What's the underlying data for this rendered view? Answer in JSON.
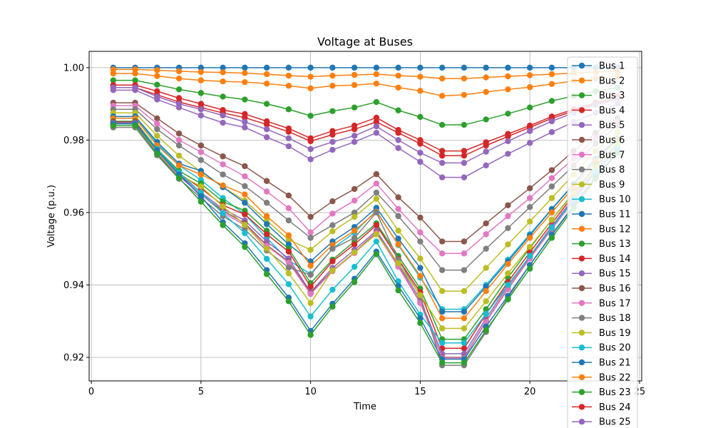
{
  "chart_data": {
    "type": "line",
    "title": "Voltage at Buses",
    "xlabel": "Time",
    "ylabel": "Voltage (p.u.)",
    "xlim": [
      -0.1,
      25.1
    ],
    "ylim": [
      0.9135,
      1.0045
    ],
    "xticks": [
      0,
      5,
      10,
      15,
      20,
      25
    ],
    "xtick_labels": [
      "0",
      "5",
      "10",
      "15",
      "20",
      "25"
    ],
    "yticks": [
      0.92,
      0.94,
      0.96,
      0.98,
      1.0
    ],
    "ytick_labels": [
      "0.92",
      "0.94",
      "0.96",
      "0.98",
      "1.00"
    ],
    "grid": true,
    "legend_position": "upper-right",
    "x": [
      1,
      2,
      3,
      4,
      5,
      6,
      7,
      8,
      9,
      10,
      11,
      12,
      13,
      14,
      15,
      16,
      17,
      18,
      19,
      20,
      21,
      22,
      23,
      24
    ],
    "series": [
      {
        "name": "Bus 1",
        "color": "#1f77b4",
        "values": [
          1.0,
          1.0,
          1.0,
          1.0,
          1.0,
          1.0,
          1.0,
          1.0,
          1.0,
          1.0,
          1.0,
          1.0,
          1.0,
          1.0,
          1.0,
          1.0,
          1.0,
          1.0,
          1.0,
          1.0,
          1.0,
          1.0,
          1.0,
          1.0
        ]
      },
      {
        "name": "Bus 2",
        "color": "#ff7f0e",
        "values": [
          0.9984,
          0.9984,
          0.9977,
          0.997,
          0.9965,
          0.9962,
          0.996,
          0.9956,
          0.995,
          0.9943,
          0.995,
          0.9952,
          0.9956,
          0.9945,
          0.9936,
          0.9922,
          0.9925,
          0.9933,
          0.994,
          0.9946,
          0.9955,
          0.9963,
          0.997,
          0.9976
        ]
      },
      {
        "name": "Bus 3",
        "color": "#2ca02c",
        "values": [
          0.9965,
          0.9965,
          0.9953,
          0.994,
          0.993,
          0.992,
          0.9912,
          0.99,
          0.9885,
          0.9867,
          0.988,
          0.989,
          0.9905,
          0.9882,
          0.9864,
          0.9842,
          0.9842,
          0.9857,
          0.9873,
          0.989,
          0.9908,
          0.9922,
          0.9935,
          0.9945
        ]
      },
      {
        "name": "Bus 4",
        "color": "#d62728",
        "values": [
          0.9952,
          0.9952,
          0.9935,
          0.9916,
          0.99,
          0.9883,
          0.9872,
          0.9852,
          0.9832,
          0.9805,
          0.9825,
          0.984,
          0.9862,
          0.9828,
          0.98,
          0.977,
          0.977,
          0.9794,
          0.9817,
          0.984,
          0.9865,
          0.9885,
          0.9903,
          0.992
        ]
      },
      {
        "name": "Bus 5",
        "color": "#9467bd",
        "values": [
          0.9938,
          0.9938,
          0.9912,
          0.989,
          0.9868,
          0.9848,
          0.9835,
          0.9808,
          0.9783,
          0.9747,
          0.9773,
          0.9795,
          0.982,
          0.9778,
          0.974,
          0.9697,
          0.9697,
          0.973,
          0.9762,
          0.9792,
          0.9822,
          0.985,
          0.9876,
          0.99
        ]
      },
      {
        "name": "Bus 6",
        "color": "#8c564b",
        "values": [
          0.9903,
          0.9903,
          0.986,
          0.9818,
          0.9785,
          0.9755,
          0.9728,
          0.9687,
          0.9647,
          0.9588,
          0.9631,
          0.9665,
          0.9706,
          0.9642,
          0.9586,
          0.952,
          0.952,
          0.957,
          0.962,
          0.9667,
          0.9717,
          0.977,
          0.982,
          0.986
        ]
      },
      {
        "name": "Bus 7",
        "color": "#e377c2",
        "values": [
          0.9895,
          0.9895,
          0.9845,
          0.98,
          0.9767,
          0.9733,
          0.97,
          0.9658,
          0.9612,
          0.9545,
          0.9597,
          0.9633,
          0.968,
          0.961,
          0.9545,
          0.9487,
          0.9487,
          0.954,
          0.959,
          0.964,
          0.9695,
          0.975,
          0.9805,
          0.985
        ]
      },
      {
        "name": "Bus 8",
        "color": "#7f7f7f",
        "values": [
          0.9885,
          0.9885,
          0.983,
          0.9785,
          0.9745,
          0.9705,
          0.9673,
          0.9627,
          0.9578,
          0.953,
          0.9565,
          0.96,
          0.9655,
          0.959,
          0.952,
          0.9441,
          0.9441,
          0.95,
          0.9557,
          0.9615,
          0.9672,
          0.973,
          0.979,
          0.984
        ]
      },
      {
        "name": "Bus 9",
        "color": "#bcbd22",
        "values": [
          0.9875,
          0.9875,
          0.9812,
          0.9757,
          0.9713,
          0.967,
          0.9633,
          0.9578,
          0.9525,
          0.9497,
          0.9548,
          0.9588,
          0.9638,
          0.955,
          0.9473,
          0.9383,
          0.9383,
          0.9447,
          0.9512,
          0.9575,
          0.964,
          0.9705,
          0.977,
          0.9822
        ]
      },
      {
        "name": "Bus 10",
        "color": "#17becf",
        "values": [
          0.9865,
          0.9865,
          0.979,
          0.973,
          0.969,
          0.964,
          0.9595,
          0.953,
          0.9468,
          0.943,
          0.95,
          0.9545,
          0.9605,
          0.951,
          0.942,
          0.9333,
          0.9333,
          0.94,
          0.947,
          0.954,
          0.961,
          0.968,
          0.975,
          0.9805
        ]
      },
      {
        "name": "Bus 11",
        "color": "#1f77b4",
        "values": [
          0.9865,
          0.9865,
          0.9795,
          0.9735,
          0.9715,
          0.967,
          0.9627,
          0.9568,
          0.9512,
          0.9465,
          0.952,
          0.956,
          0.9613,
          0.9528,
          0.9447,
          0.9326,
          0.9326,
          0.9395,
          0.9465,
          0.9537,
          0.9609,
          0.9678,
          0.9748,
          0.9804
        ]
      },
      {
        "name": "Bus 12",
        "color": "#ff7f0e",
        "values": [
          0.986,
          0.986,
          0.9785,
          0.973,
          0.9705,
          0.9675,
          0.965,
          0.959,
          0.9537,
          0.9453,
          0.951,
          0.955,
          0.9602,
          0.9512,
          0.9425,
          0.9308,
          0.9308,
          0.9383,
          0.9458,
          0.953,
          0.96,
          0.967,
          0.9742,
          0.98
        ]
      },
      {
        "name": "Bus 13",
        "color": "#2ca02c",
        "values": [
          0.9852,
          0.9852,
          0.9775,
          0.9715,
          0.968,
          0.963,
          0.9605,
          0.955,
          0.95,
          0.9405,
          0.947,
          0.952,
          0.957,
          0.948,
          0.939,
          0.925,
          0.925,
          0.9333,
          0.942,
          0.9502,
          0.958,
          0.9655,
          0.973,
          0.979
        ]
      },
      {
        "name": "Bus 14",
        "color": "#d62728",
        "values": [
          0.985,
          0.985,
          0.977,
          0.9708,
          0.9667,
          0.962,
          0.9595,
          0.954,
          0.9492,
          0.9395,
          0.9465,
          0.9512,
          0.9565,
          0.9472,
          0.938,
          0.9225,
          0.9225,
          0.932,
          0.9408,
          0.949,
          0.957,
          0.9648,
          0.9725,
          0.9785
        ]
      },
      {
        "name": "Bus 15",
        "color": "#9467bd",
        "values": [
          0.9848,
          0.9848,
          0.9768,
          0.9705,
          0.9655,
          0.961,
          0.9578,
          0.952,
          0.9473,
          0.938,
          0.9447,
          0.9497,
          0.955,
          0.9458,
          0.936,
          0.921,
          0.921,
          0.9308,
          0.9397,
          0.948,
          0.9562,
          0.964,
          0.9718,
          0.978
        ]
      },
      {
        "name": "Bus 16",
        "color": "#8c564b",
        "values": [
          0.9845,
          0.9845,
          0.9765,
          0.97,
          0.965,
          0.9605,
          0.957,
          0.951,
          0.9465,
          0.9378,
          0.944,
          0.949,
          0.9545,
          0.9452,
          0.9352,
          0.92,
          0.92,
          0.93,
          0.939,
          0.9475,
          0.9556,
          0.9635,
          0.9713,
          0.9776
        ]
      },
      {
        "name": "Bus 17",
        "color": "#e377c2",
        "values": [
          0.9845,
          0.9845,
          0.9765,
          0.97,
          0.965,
          0.96,
          0.9565,
          0.9508,
          0.9462,
          0.9375,
          0.9438,
          0.9488,
          0.9543,
          0.945,
          0.935,
          0.9198,
          0.9198,
          0.9298,
          0.9388,
          0.9473,
          0.9554,
          0.9633,
          0.9711,
          0.9775
        ]
      },
      {
        "name": "Bus 18",
        "color": "#7f7f7f",
        "values": [
          0.9835,
          0.9835,
          0.9758,
          0.9693,
          0.964,
          0.959,
          0.9553,
          0.9495,
          0.9448,
          0.9428,
          0.95,
          0.953,
          0.96,
          0.947,
          0.937,
          0.9178,
          0.9178,
          0.927,
          0.9365,
          0.9455,
          0.954,
          0.962,
          0.97,
          0.9768
        ]
      },
      {
        "name": "Bus 19",
        "color": "#bcbd22",
        "values": [
          0.9845,
          0.9845,
          0.977,
          0.9705,
          0.9672,
          0.9617,
          0.9566,
          0.95,
          0.9432,
          0.935,
          0.944,
          0.949,
          0.954,
          0.946,
          0.9372,
          0.928,
          0.928,
          0.9355,
          0.9432,
          0.9505,
          0.958,
          0.9652,
          0.9725,
          0.9785
        ]
      },
      {
        "name": "Bus 20",
        "color": "#17becf",
        "values": [
          0.9845,
          0.9845,
          0.9775,
          0.971,
          0.9655,
          0.9598,
          0.9543,
          0.9472,
          0.9402,
          0.9313,
          0.9387,
          0.945,
          0.952,
          0.941,
          0.9318,
          0.924,
          0.924,
          0.932,
          0.94,
          0.948,
          0.9558,
          0.9635,
          0.9712,
          0.9778
        ]
      },
      {
        "name": "Bus 21",
        "color": "#1f77b4",
        "values": [
          0.9845,
          0.9845,
          0.9772,
          0.9705,
          0.9645,
          0.9573,
          0.9515,
          0.9441,
          0.9365,
          0.9273,
          0.9348,
          0.9417,
          0.9492,
          0.9397,
          0.9308,
          0.9195,
          0.9195,
          0.9285,
          0.937,
          0.9455,
          0.9538,
          0.9618,
          0.9698,
          0.9768
        ]
      },
      {
        "name": "Bus 22",
        "color": "#ff7f0e",
        "values": [
          0.9995,
          0.9995,
          0.9993,
          0.999,
          0.9988,
          0.9987,
          0.9985,
          0.9982,
          0.9978,
          0.9975,
          0.9978,
          0.998,
          0.9982,
          0.9978,
          0.9975,
          0.997,
          0.997,
          0.9973,
          0.9976,
          0.9979,
          0.9982,
          0.9985,
          0.9988,
          0.999
        ]
      },
      {
        "name": "Bus 23",
        "color": "#2ca02c",
        "values": [
          0.984,
          0.984,
          0.9762,
          0.9695,
          0.963,
          0.9565,
          0.9505,
          0.943,
          0.9355,
          0.9262,
          0.934,
          0.9408,
          0.9485,
          0.9385,
          0.9295,
          0.9185,
          0.9185,
          0.9275,
          0.936,
          0.9445,
          0.953,
          0.9612,
          0.9693,
          0.9765
        ]
      },
      {
        "name": "Bus 24",
        "color": "#d62728",
        "values": [
          0.9945,
          0.9945,
          0.9925,
          0.9905,
          0.989,
          0.9875,
          0.9862,
          0.9843,
          0.9823,
          0.9797,
          0.9815,
          0.983,
          0.985,
          0.982,
          0.979,
          0.9757,
          0.9757,
          0.9785,
          0.981,
          0.9835,
          0.986,
          0.988,
          0.99,
          0.9915
        ]
      },
      {
        "name": "Bus 25",
        "color": "#9467bd",
        "values": [
          0.9945,
          0.9945,
          0.992,
          0.99,
          0.9885,
          0.9868,
          0.985,
          0.983,
          0.9805,
          0.9775,
          0.9795,
          0.9812,
          0.9838,
          0.98,
          0.9765,
          0.9737,
          0.9737,
          0.9768,
          0.9797,
          0.9825,
          0.9852,
          0.9875,
          0.9897,
          0.9913
        ]
      }
    ]
  }
}
